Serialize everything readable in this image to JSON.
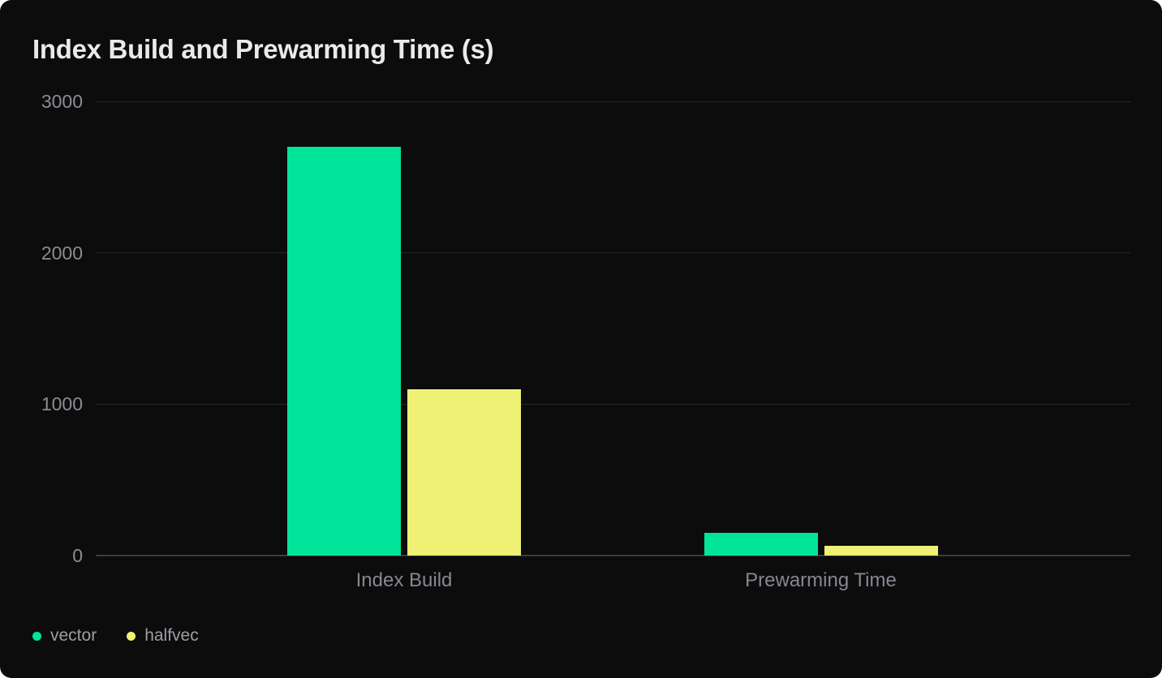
{
  "card": {
    "background": "#0c0c0d",
    "page_background": "#ffffff"
  },
  "chart_data": {
    "type": "bar",
    "title": "Index Build and Prewarming Time (s)",
    "categories": [
      "Index Build",
      "Prewarming Time"
    ],
    "series": [
      {
        "name": "vector",
        "color": "#00e599",
        "values": [
          2700,
          150
        ]
      },
      {
        "name": "halfvec",
        "color": "#eef173",
        "values": [
          1100,
          65
        ]
      }
    ],
    "xlabel": "",
    "ylabel": "",
    "ylim": [
      0,
      3000
    ],
    "yticks": [
      0,
      1000,
      2000,
      3000
    ],
    "grid": true,
    "legend_position": "bottom-left"
  },
  "colors": {
    "title_text": "#e9eaec",
    "tick_text": "#8a8d93",
    "category_text": "#85888f",
    "legend_text": "#9b9ea4",
    "gridline": "#26272b",
    "zero_line": "#3a3b40"
  }
}
